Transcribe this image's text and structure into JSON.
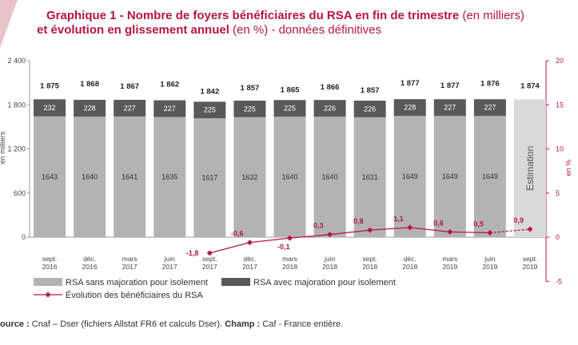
{
  "chart_data": {
    "type": "bar",
    "title": [
      {
        "text": "Graphique 1 - Nombre de foyers bénéficiaires du RSA en fin de trimestre",
        "bold": true
      },
      {
        "text": " (en milliers)",
        "bold": false
      }
    ],
    "subtitle": [
      {
        "text": "et évolution en glissement annuel",
        "bold": true
      },
      {
        "text": " (en %) - données définitives",
        "bold": false
      }
    ],
    "y_label": "en milliers",
    "y2_label": "en %",
    "categories": [
      "sept. 2016",
      "déc. 2016",
      "mars 2017",
      "juin 2017",
      "sept. 2017",
      "déc. 2017",
      "mars 2018",
      "juin 2018",
      "sept. 2018",
      "déc. 2018",
      "mars 2019",
      "juin 2019",
      "sept. 2019"
    ],
    "series": [
      {
        "name": "RSA sans majoration pour isolement",
        "color": "#b3b3b3",
        "values": [
          1643,
          1640,
          1641,
          1635,
          1617,
          1632,
          1640,
          1640,
          1631,
          1649,
          1649,
          1649,
          null
        ]
      },
      {
        "name": "RSA avec majoration pour isolement",
        "color": "#595959",
        "values": [
          232,
          228,
          227,
          227,
          225,
          225,
          225,
          226,
          226,
          228,
          227,
          227,
          null
        ]
      },
      {
        "name": "Évolution des bénéficiaires du RSA",
        "color": "#b5173f",
        "axis": "y2",
        "type": "line",
        "values": [
          null,
          null,
          null,
          null,
          -1.8,
          -0.6,
          -0.1,
          0.3,
          0.8,
          1.1,
          0.6,
          0.5,
          0.9
        ],
        "value_labels": [
          null,
          null,
          null,
          null,
          "-1,8",
          "-0,6",
          "-0,1",
          "0,3",
          "0,8",
          "1,1",
          "0,6",
          "0,5",
          "0,9"
        ]
      }
    ],
    "totals": {
      "values": [
        1875,
        1868,
        1867,
        1862,
        1842,
        1857,
        1865,
        1866,
        1857,
        1877,
        1877,
        1876,
        1874
      ],
      "value_labels": [
        "1 875",
        "1 868",
        "1 867",
        "1 862",
        "1 842",
        "1 857",
        "1 865",
        "1 866",
        "1 857",
        "1 877",
        "1 877",
        "1 876",
        "1 874"
      ]
    },
    "estimation": {
      "label": "Estimation",
      "color": "#d9d9d9"
    },
    "ylim": [
      0,
      2400
    ],
    "yticks": [
      0,
      600,
      {
        "value": 1200,
        "label": "1 200"
      },
      {
        "value": 1800,
        "label": "1 800"
      },
      {
        "value": 2400,
        "label": "2 400"
      }
    ],
    "y2lim": [
      -5,
      20
    ],
    "y2ticks": [
      -5,
      0,
      5,
      10,
      15,
      20
    ],
    "source": [
      {
        "text": "ource :",
        "bold": true
      },
      {
        "text": " Cnaf – Dser (fichiers Allstat FR6 et calculs Dser). ",
        "bold": false
      },
      {
        "text": "Champ :",
        "bold": true
      },
      {
        "text": " Caf - France entière.",
        "bold": false
      }
    ]
  }
}
